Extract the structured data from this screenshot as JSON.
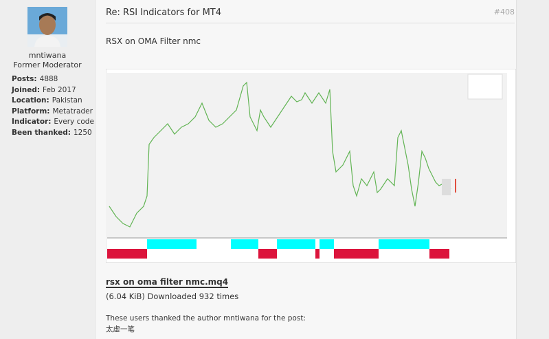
{
  "profile": {
    "username": "mntiwana",
    "rank": "Former Moderator",
    "stats": [
      {
        "label": "Posts:",
        "value": "4888"
      },
      {
        "label": "Joined:",
        "value": "Feb 2017"
      },
      {
        "label": "Location:",
        "value": "Pakistan"
      },
      {
        "label": "Platform:",
        "value": "Metatrader"
      },
      {
        "label": "Indicator:",
        "value": "Every code"
      },
      {
        "label": "Been thanked:",
        "value": "1250"
      }
    ]
  },
  "post": {
    "title": "Re: RSI Indicators for MT4",
    "number": "#408",
    "body": "RSX on OMA Filter nmc",
    "attachment": {
      "name": "rsx on oma filter nmc.mq4",
      "info": "(6.04 KiB) Downloaded 932 times"
    },
    "thanks": {
      "text": "These users thanked the author mntiwana for the post:",
      "users": [
        "太虚一笔"
      ]
    }
  }
}
